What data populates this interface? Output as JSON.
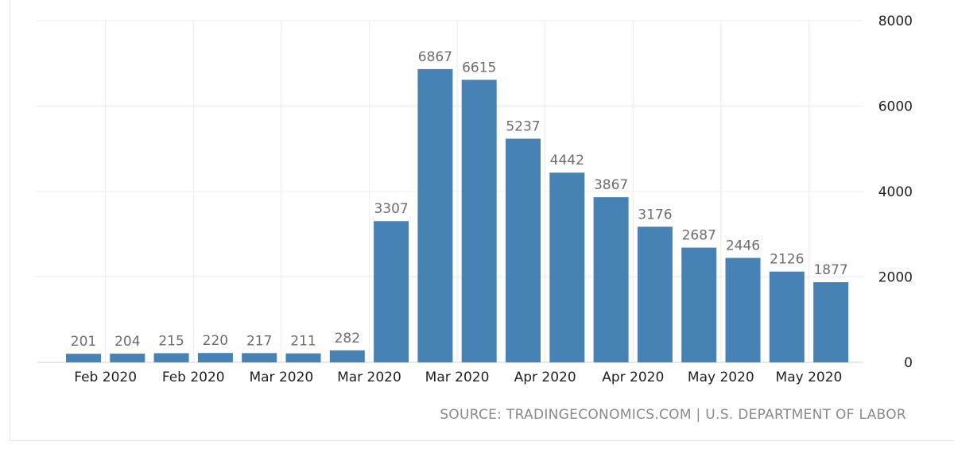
{
  "source_text": "SOURCE: TRADINGECONOMICS.COM | U.S. DEPARTMENT OF LABOR",
  "chart_data": {
    "type": "bar",
    "bar_color": "#4682b4",
    "values": [
      201,
      204,
      215,
      220,
      217,
      211,
      282,
      3307,
      6867,
      6615,
      5237,
      4442,
      3867,
      3176,
      2687,
      2446,
      2126,
      1877
    ],
    "x_tick_labels": [
      "Feb 2020",
      "Feb 2020",
      "Mar 2020",
      "Mar 2020",
      "Mar 2020",
      "Apr 2020",
      "Apr 2020",
      "May 2020",
      "May 2020"
    ],
    "y_ticks": [
      0,
      2000,
      4000,
      6000,
      8000
    ],
    "ylim": [
      0,
      8000
    ],
    "y_axis_side": "right",
    "grid": true,
    "data_labels": true
  }
}
